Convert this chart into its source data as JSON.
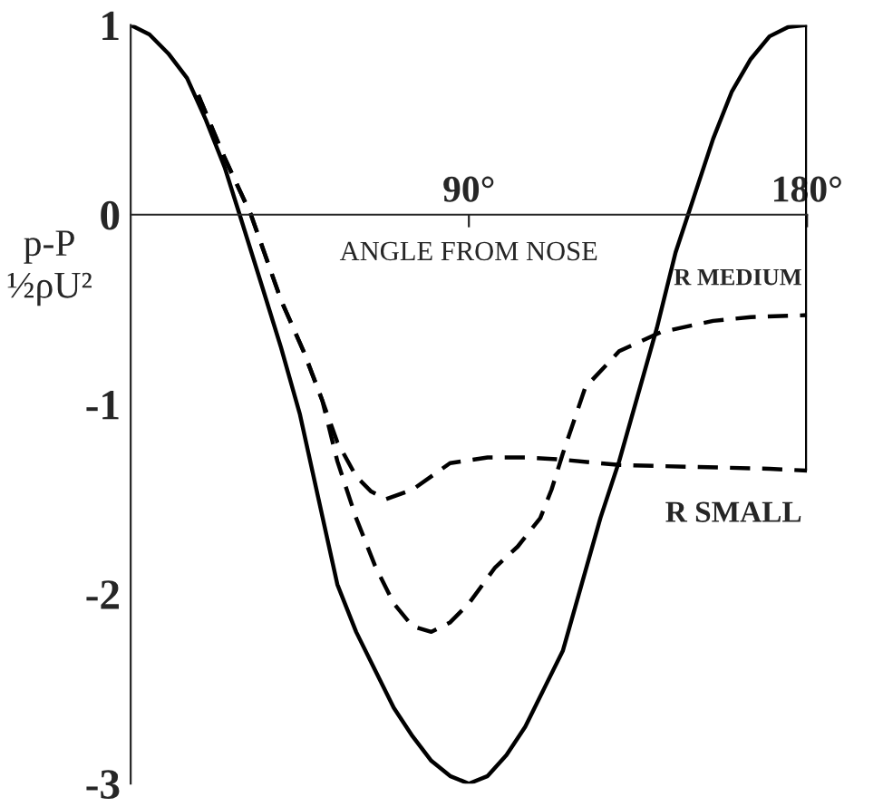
{
  "chart_data": {
    "type": "line",
    "xlabel": "ANGLE FROM NOSE",
    "ylabel": "p-P\n½ρU²",
    "xlim": [
      0,
      180
    ],
    "ylim": [
      -3,
      1
    ],
    "xticks": [
      {
        "value": 90,
        "label": "90°"
      },
      {
        "value": 180,
        "label": "180°"
      }
    ],
    "yticks": [
      -3,
      -2,
      -1,
      0,
      1
    ],
    "grid": false,
    "legend": false,
    "marker": "none",
    "ref_lines": [
      {
        "axis": "x",
        "value": 180,
        "label": null,
        "color": "#000000",
        "line_style": "solid"
      }
    ],
    "series": [
      {
        "color": "#000000",
        "line_style": "solid",
        "x": [
          0,
          5,
          10,
          15,
          20,
          25,
          29,
          35,
          40,
          45,
          50,
          55,
          60,
          65,
          70,
          75,
          80,
          85,
          90,
          95,
          100,
          105,
          110,
          115,
          120,
          125,
          130,
          135,
          140,
          145,
          150,
          155,
          160,
          165,
          170,
          175,
          180
        ],
        "values": [
          1.0,
          0.95,
          0.85,
          0.72,
          0.5,
          0.25,
          0.0,
          -0.38,
          -0.7,
          -1.05,
          -1.5,
          -1.95,
          -2.2,
          -2.4,
          -2.6,
          -2.75,
          -2.88,
          -2.96,
          -3.0,
          -2.96,
          -2.85,
          -2.7,
          -2.5,
          -2.3,
          -1.95,
          -1.6,
          -1.3,
          -0.95,
          -0.6,
          -0.2,
          0.1,
          0.4,
          0.65,
          0.82,
          0.94,
          0.99,
          1.0
        ]
      },
      {
        "name": "R MEDIUM",
        "color": "#000000",
        "line_style": "dashed",
        "x": [
          18,
          25,
          32,
          40,
          46,
          51,
          55,
          60,
          65,
          70,
          75,
          80,
          85,
          90,
          97,
          103,
          109,
          112,
          115,
          121,
          130,
          141,
          155,
          165,
          180
        ],
        "values": [
          0.63,
          0.3,
          0.0,
          -0.45,
          -0.72,
          -0.98,
          -1.3,
          -1.6,
          -1.85,
          -2.05,
          -2.17,
          -2.2,
          -2.15,
          -2.05,
          -1.86,
          -1.75,
          -1.6,
          -1.45,
          -1.26,
          -0.91,
          -0.72,
          -0.62,
          -0.56,
          -0.54,
          -0.53
        ]
      },
      {
        "name": "R SMALL",
        "color": "#000000",
        "line_style": "dashed",
        "x": [
          18,
          25,
          32,
          40,
          46,
          51,
          55,
          60,
          64,
          68,
          75,
          80,
          85,
          95,
          105,
          114,
          130,
          150,
          170,
          180
        ],
        "values": [
          0.63,
          0.3,
          0.0,
          -0.45,
          -0.72,
          -0.98,
          -1.2,
          -1.38,
          -1.46,
          -1.5,
          -1.45,
          -1.38,
          -1.31,
          -1.28,
          -1.28,
          -1.29,
          -1.32,
          -1.33,
          -1.34,
          -1.35
        ]
      }
    ]
  }
}
